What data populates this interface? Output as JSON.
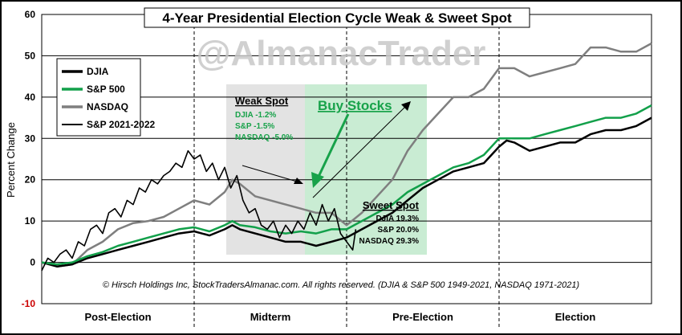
{
  "chart_data": {
    "type": "line",
    "title": "4-Year Presidential Election Cycle Weak & Sweet Spot",
    "watermark": "@AlmanacTrader",
    "ylabel": "Percent Change",
    "ylim": [
      -10,
      60
    ],
    "yticks": [
      "60",
      "50",
      "40",
      "30",
      "20",
      "10",
      "0",
      "-10"
    ],
    "x_categories": [
      "Post-Election",
      "Midterm",
      "Pre-Election",
      "Election"
    ],
    "xlim": [
      0,
      4
    ],
    "grid": true,
    "legend_placement": "top-left",
    "legend": [
      "DJIA",
      "S&P 500",
      "NASDAQ",
      "S&P 2021-2022"
    ],
    "series": [
      {
        "name": "DJIA",
        "color": "#000000",
        "points": [
          [
            0,
            0
          ],
          [
            0.1,
            -1
          ],
          [
            0.2,
            -0.5
          ],
          [
            0.3,
            1
          ],
          [
            0.4,
            2
          ],
          [
            0.5,
            3
          ],
          [
            0.6,
            4
          ],
          [
            0.7,
            5
          ],
          [
            0.8,
            6
          ],
          [
            0.9,
            7
          ],
          [
            1.0,
            7.5
          ],
          [
            1.1,
            6.5
          ],
          [
            1.2,
            8
          ],
          [
            1.25,
            9
          ],
          [
            1.3,
            8
          ],
          [
            1.4,
            7
          ],
          [
            1.5,
            6
          ],
          [
            1.6,
            5
          ],
          [
            1.7,
            5
          ],
          [
            1.8,
            4
          ],
          [
            1.9,
            5
          ],
          [
            2.0,
            6
          ],
          [
            2.1,
            8
          ],
          [
            2.2,
            10
          ],
          [
            2.3,
            12
          ],
          [
            2.4,
            15
          ],
          [
            2.5,
            18
          ],
          [
            2.6,
            20
          ],
          [
            2.7,
            22
          ],
          [
            2.8,
            23
          ],
          [
            2.9,
            24
          ],
          [
            3.0,
            28
          ],
          [
            3.05,
            29.5
          ],
          [
            3.1,
            29
          ],
          [
            3.2,
            27
          ],
          [
            3.3,
            28
          ],
          [
            3.4,
            29
          ],
          [
            3.5,
            29
          ],
          [
            3.6,
            31
          ],
          [
            3.7,
            32
          ],
          [
            3.8,
            32
          ],
          [
            3.9,
            33
          ],
          [
            4.0,
            35
          ]
        ]
      },
      {
        "name": "S&P 500",
        "color": "#12a04a",
        "points": [
          [
            0,
            0
          ],
          [
            0.1,
            -0.5
          ],
          [
            0.2,
            0
          ],
          [
            0.3,
            1.5
          ],
          [
            0.4,
            2.5
          ],
          [
            0.5,
            4
          ],
          [
            0.6,
            5
          ],
          [
            0.7,
            6
          ],
          [
            0.8,
            7
          ],
          [
            0.9,
            8
          ],
          [
            1.0,
            8.5
          ],
          [
            1.1,
            7.5
          ],
          [
            1.2,
            9
          ],
          [
            1.25,
            10
          ],
          [
            1.3,
            9
          ],
          [
            1.4,
            8.5
          ],
          [
            1.5,
            7.5
          ],
          [
            1.6,
            7
          ],
          [
            1.7,
            7.5
          ],
          [
            1.8,
            7
          ],
          [
            1.9,
            8
          ],
          [
            2.0,
            8
          ],
          [
            2.1,
            10
          ],
          [
            2.2,
            12
          ],
          [
            2.3,
            14
          ],
          [
            2.4,
            17
          ],
          [
            2.5,
            19
          ],
          [
            2.6,
            21
          ],
          [
            2.7,
            23
          ],
          [
            2.8,
            24
          ],
          [
            2.9,
            26
          ],
          [
            3.0,
            30
          ],
          [
            3.1,
            30
          ],
          [
            3.2,
            30
          ],
          [
            3.3,
            31
          ],
          [
            3.4,
            32
          ],
          [
            3.5,
            33
          ],
          [
            3.6,
            34
          ],
          [
            3.7,
            35
          ],
          [
            3.8,
            35
          ],
          [
            3.9,
            36
          ],
          [
            4.0,
            38
          ]
        ]
      },
      {
        "name": "NASDAQ",
        "color": "#7f7f7f",
        "points": [
          [
            0,
            0
          ],
          [
            0.1,
            -1
          ],
          [
            0.2,
            -0.5
          ],
          [
            0.3,
            3
          ],
          [
            0.4,
            5
          ],
          [
            0.5,
            8
          ],
          [
            0.6,
            9.5
          ],
          [
            0.7,
            10
          ],
          [
            0.8,
            11
          ],
          [
            0.9,
            13
          ],
          [
            1.0,
            15
          ],
          [
            1.1,
            14
          ],
          [
            1.2,
            17
          ],
          [
            1.25,
            20
          ],
          [
            1.3,
            19
          ],
          [
            1.4,
            16
          ],
          [
            1.5,
            15
          ],
          [
            1.6,
            14
          ],
          [
            1.7,
            13
          ],
          [
            1.8,
            12
          ],
          [
            1.9,
            12
          ],
          [
            2.0,
            9
          ],
          [
            2.1,
            12
          ],
          [
            2.2,
            16
          ],
          [
            2.3,
            20
          ],
          [
            2.4,
            27
          ],
          [
            2.5,
            32
          ],
          [
            2.6,
            36
          ],
          [
            2.7,
            40
          ],
          [
            2.8,
            40
          ],
          [
            2.9,
            42
          ],
          [
            3.0,
            47
          ],
          [
            3.1,
            47
          ],
          [
            3.2,
            45
          ],
          [
            3.3,
            46
          ],
          [
            3.4,
            47
          ],
          [
            3.5,
            48
          ],
          [
            3.6,
            52
          ],
          [
            3.7,
            52
          ],
          [
            3.8,
            51
          ],
          [
            3.9,
            51
          ],
          [
            4.0,
            53
          ]
        ]
      },
      {
        "name": "S&P 2021-2022",
        "color": "#000000",
        "points": [
          [
            0,
            -2
          ],
          [
            0.04,
            1
          ],
          [
            0.08,
            0
          ],
          [
            0.12,
            2
          ],
          [
            0.16,
            3
          ],
          [
            0.2,
            1
          ],
          [
            0.24,
            5
          ],
          [
            0.28,
            4
          ],
          [
            0.32,
            8
          ],
          [
            0.36,
            9
          ],
          [
            0.4,
            7
          ],
          [
            0.44,
            12
          ],
          [
            0.48,
            13
          ],
          [
            0.52,
            11
          ],
          [
            0.56,
            15
          ],
          [
            0.6,
            14
          ],
          [
            0.64,
            18
          ],
          [
            0.68,
            17
          ],
          [
            0.72,
            20
          ],
          [
            0.76,
            19
          ],
          [
            0.8,
            21
          ],
          [
            0.84,
            22
          ],
          [
            0.88,
            24
          ],
          [
            0.92,
            23
          ],
          [
            0.96,
            27
          ],
          [
            1.0,
            25
          ],
          [
            1.04,
            26
          ],
          [
            1.08,
            22
          ],
          [
            1.12,
            24
          ],
          [
            1.16,
            20
          ],
          [
            1.2,
            23
          ],
          [
            1.24,
            18
          ],
          [
            1.28,
            21
          ],
          [
            1.32,
            15
          ],
          [
            1.36,
            12
          ],
          [
            1.4,
            13
          ],
          [
            1.44,
            9
          ],
          [
            1.48,
            8
          ],
          [
            1.52,
            10
          ],
          [
            1.56,
            6
          ],
          [
            1.6,
            9
          ],
          [
            1.64,
            7
          ],
          [
            1.68,
            10
          ],
          [
            1.72,
            8
          ],
          [
            1.76,
            12
          ],
          [
            1.8,
            9
          ],
          [
            1.84,
            14
          ],
          [
            1.88,
            10
          ],
          [
            1.92,
            13
          ],
          [
            1.96,
            7
          ],
          [
            2.0,
            5
          ],
          [
            2.04,
            3
          ],
          [
            2.06,
            8
          ]
        ]
      }
    ],
    "annotations": {
      "weak_spot_title": "Weak Spot",
      "weak_spot_lines": [
        "DJIA -1.2%",
        "S&P -1.5%",
        "NASDAQ -5.0%"
      ],
      "buy_stocks": "Buy Stocks",
      "sweet_spot_title": "Sweet Spot",
      "sweet_spot_lines": [
        "DJIA 19.3%",
        "S&P 20.0%",
        "NASDAQ 29.3%"
      ],
      "copyright": "© Hirsch Holdings Inc, StockTradersAlmanac.com. All rights reserved. (DJIA & S&P 500 1949-2021, NASDAQ 1971-2021)"
    },
    "colors": {
      "weak_zone": "#e3e3e3",
      "sweet_zone": "#c9ecd3",
      "accent_green": "#18a24a",
      "negative_tick": "#cc0000"
    }
  }
}
